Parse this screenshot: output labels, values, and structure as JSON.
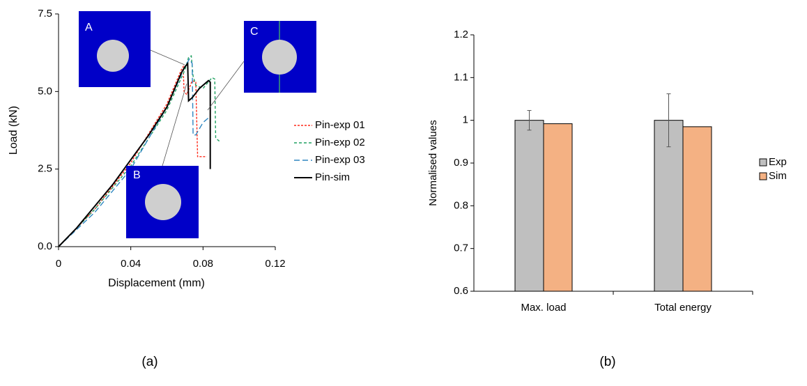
{
  "chart_data": [
    {
      "type": "line",
      "xlabel": "Displacement (mm)",
      "ylabel": "Load (kN)",
      "caption": "(a)",
      "annotations": [
        "A",
        "B",
        "C"
      ],
      "xlim": [
        0,
        0.12
      ],
      "xticks": [
        0,
        0.04,
        0.08,
        0.12
      ],
      "ylim": [
        0,
        7.5
      ],
      "yticks": [
        {
          "value": 0,
          "label": "0.0"
        },
        {
          "value": 2.5,
          "label": "2.5"
        },
        {
          "value": 5,
          "label": "5.0"
        },
        {
          "value": 7.5,
          "label": "7.5"
        }
      ],
      "legend": "right",
      "series": [
        {
          "name": "Pin-exp 01",
          "color": "#ff2a1a",
          "dash": "3,2",
          "x": [
            0,
            0.02,
            0.04,
            0.06,
            0.068,
            0.069,
            0.0695,
            0.071,
            0.074,
            0.076,
            0.077,
            0.082
          ],
          "values": [
            0,
            1.2,
            2.7,
            4.6,
            5.7,
            5.8,
            5.0,
            4.9,
            5.35,
            5.3,
            2.9,
            2.9
          ]
        },
        {
          "name": "Pin-exp 02",
          "color": "#1fa060",
          "dash": "4,3",
          "x": [
            0,
            0.02,
            0.04,
            0.06,
            0.07,
            0.072,
            0.0735,
            0.0745,
            0.076,
            0.08,
            0.085,
            0.0865,
            0.087,
            0.089
          ],
          "values": [
            0,
            1.2,
            2.6,
            4.4,
            5.7,
            6.1,
            6.15,
            5.5,
            5.2,
            5.1,
            5.45,
            5.4,
            3.5,
            3.4
          ]
        },
        {
          "name": "Pin-exp 03",
          "color": "#2e86c1",
          "dash": "8,4",
          "x": [
            0,
            0.02,
            0.04,
            0.06,
            0.07,
            0.0725,
            0.074,
            0.0745,
            0.076,
            0.08,
            0.083
          ],
          "values": [
            0,
            1.1,
            2.5,
            4.5,
            5.8,
            6.05,
            5.9,
            3.6,
            3.6,
            4.0,
            4.15
          ]
        },
        {
          "name": "Pin-sim",
          "color": "#000000",
          "dash": "",
          "x": [
            0,
            0.01,
            0.02,
            0.03,
            0.04,
            0.05,
            0.06,
            0.068,
            0.07,
            0.0715,
            0.072,
            0.074,
            0.078,
            0.083,
            0.084,
            0.084
          ],
          "values": [
            0,
            0.6,
            1.3,
            2.0,
            2.8,
            3.6,
            4.5,
            5.6,
            5.8,
            5.9,
            4.7,
            4.8,
            5.1,
            5.35,
            5.3,
            2.5
          ]
        }
      ]
    },
    {
      "type": "bar",
      "ylabel": "Normalised values",
      "caption": "(b)",
      "categories": [
        "Max. load",
        "Total energy"
      ],
      "ylim": [
        0.6,
        1.2
      ],
      "yticks": [
        0.6,
        0.7,
        0.8,
        0.9,
        1,
        1.1,
        1.2
      ],
      "legend": "right",
      "series": [
        {
          "name": "Exp",
          "color": "#bfbfbf",
          "values": [
            1,
            1
          ],
          "errors": [
            0.023,
            0.062
          ]
        },
        {
          "name": "Sim",
          "color": "#f4b183",
          "values": [
            0.992,
            0.985
          ]
        }
      ]
    }
  ]
}
